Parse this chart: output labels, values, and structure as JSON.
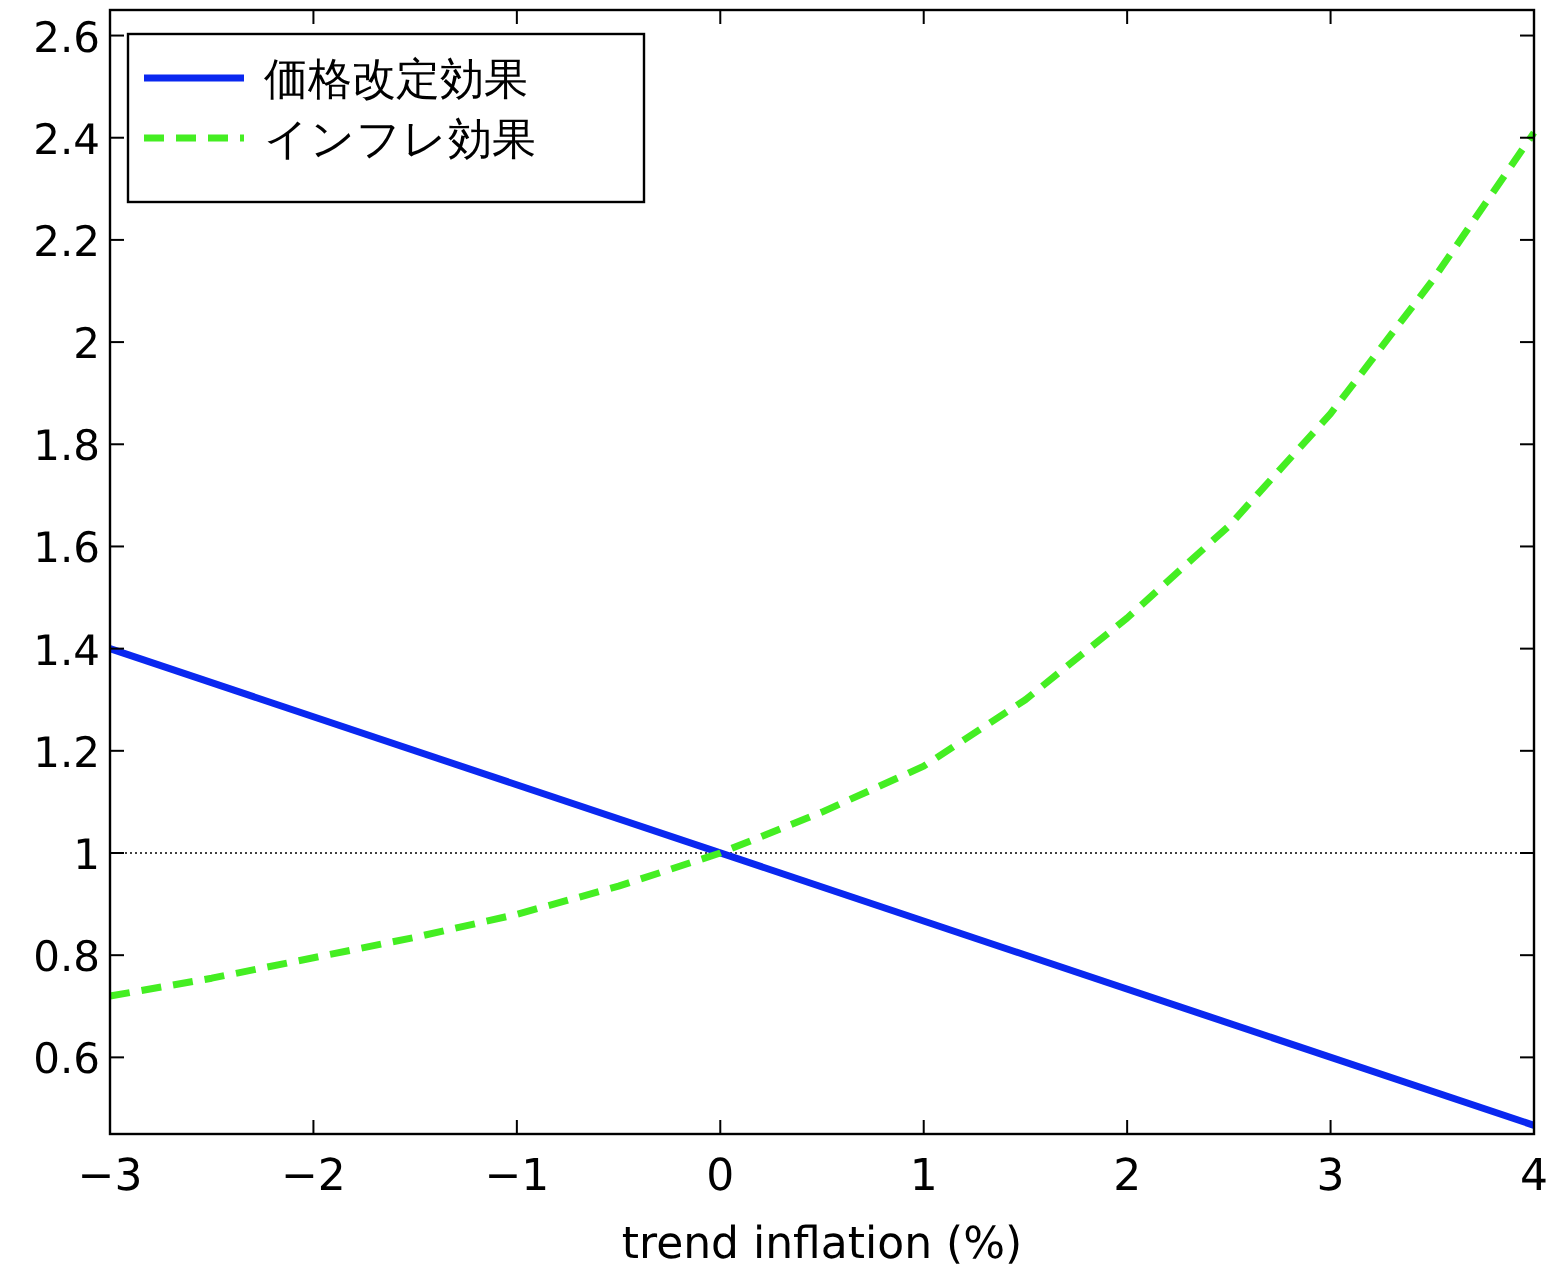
{
  "chart_data": {
    "type": "line",
    "xlabel": "trend inflation (%)",
    "xlim": [
      -3,
      4
    ],
    "xticks": [
      {
        "value": -3,
        "label": "−3"
      },
      {
        "value": -2,
        "label": "−2"
      },
      {
        "value": -1,
        "label": "−1"
      },
      0,
      1,
      2,
      3,
      4
    ],
    "ylim": [
      0.45,
      2.65
    ],
    "yticks": [
      0.6,
      0.8,
      1,
      1.2,
      1.4,
      1.6,
      1.8,
      2,
      2.2,
      2.4,
      2.6
    ],
    "legend": "top left",
    "grid": false,
    "series": [
      {
        "name": "価格改定効果",
        "color": "#0a28f0",
        "line_style": "solid",
        "x": [
          -3,
          4
        ],
        "values": [
          1.4,
          0.467
        ]
      },
      {
        "name": "インフレ効果",
        "color": "#44ee22",
        "line_style": "dashed",
        "x": [
          -3,
          -2.5,
          -2,
          -1.5,
          -1,
          -0.5,
          0,
          0.5,
          1,
          1.5,
          2,
          2.5,
          3,
          3.5,
          4
        ],
        "values": [
          0.72,
          0.755,
          0.795,
          0.835,
          0.88,
          0.935,
          1,
          1.08,
          1.17,
          1.3,
          1.46,
          1.64,
          1.86,
          2.12,
          2.41
        ]
      }
    ],
    "ref_lines": [
      {
        "axis": "y",
        "value": 1,
        "color": "#000000",
        "line_style": "dotted"
      }
    ]
  }
}
